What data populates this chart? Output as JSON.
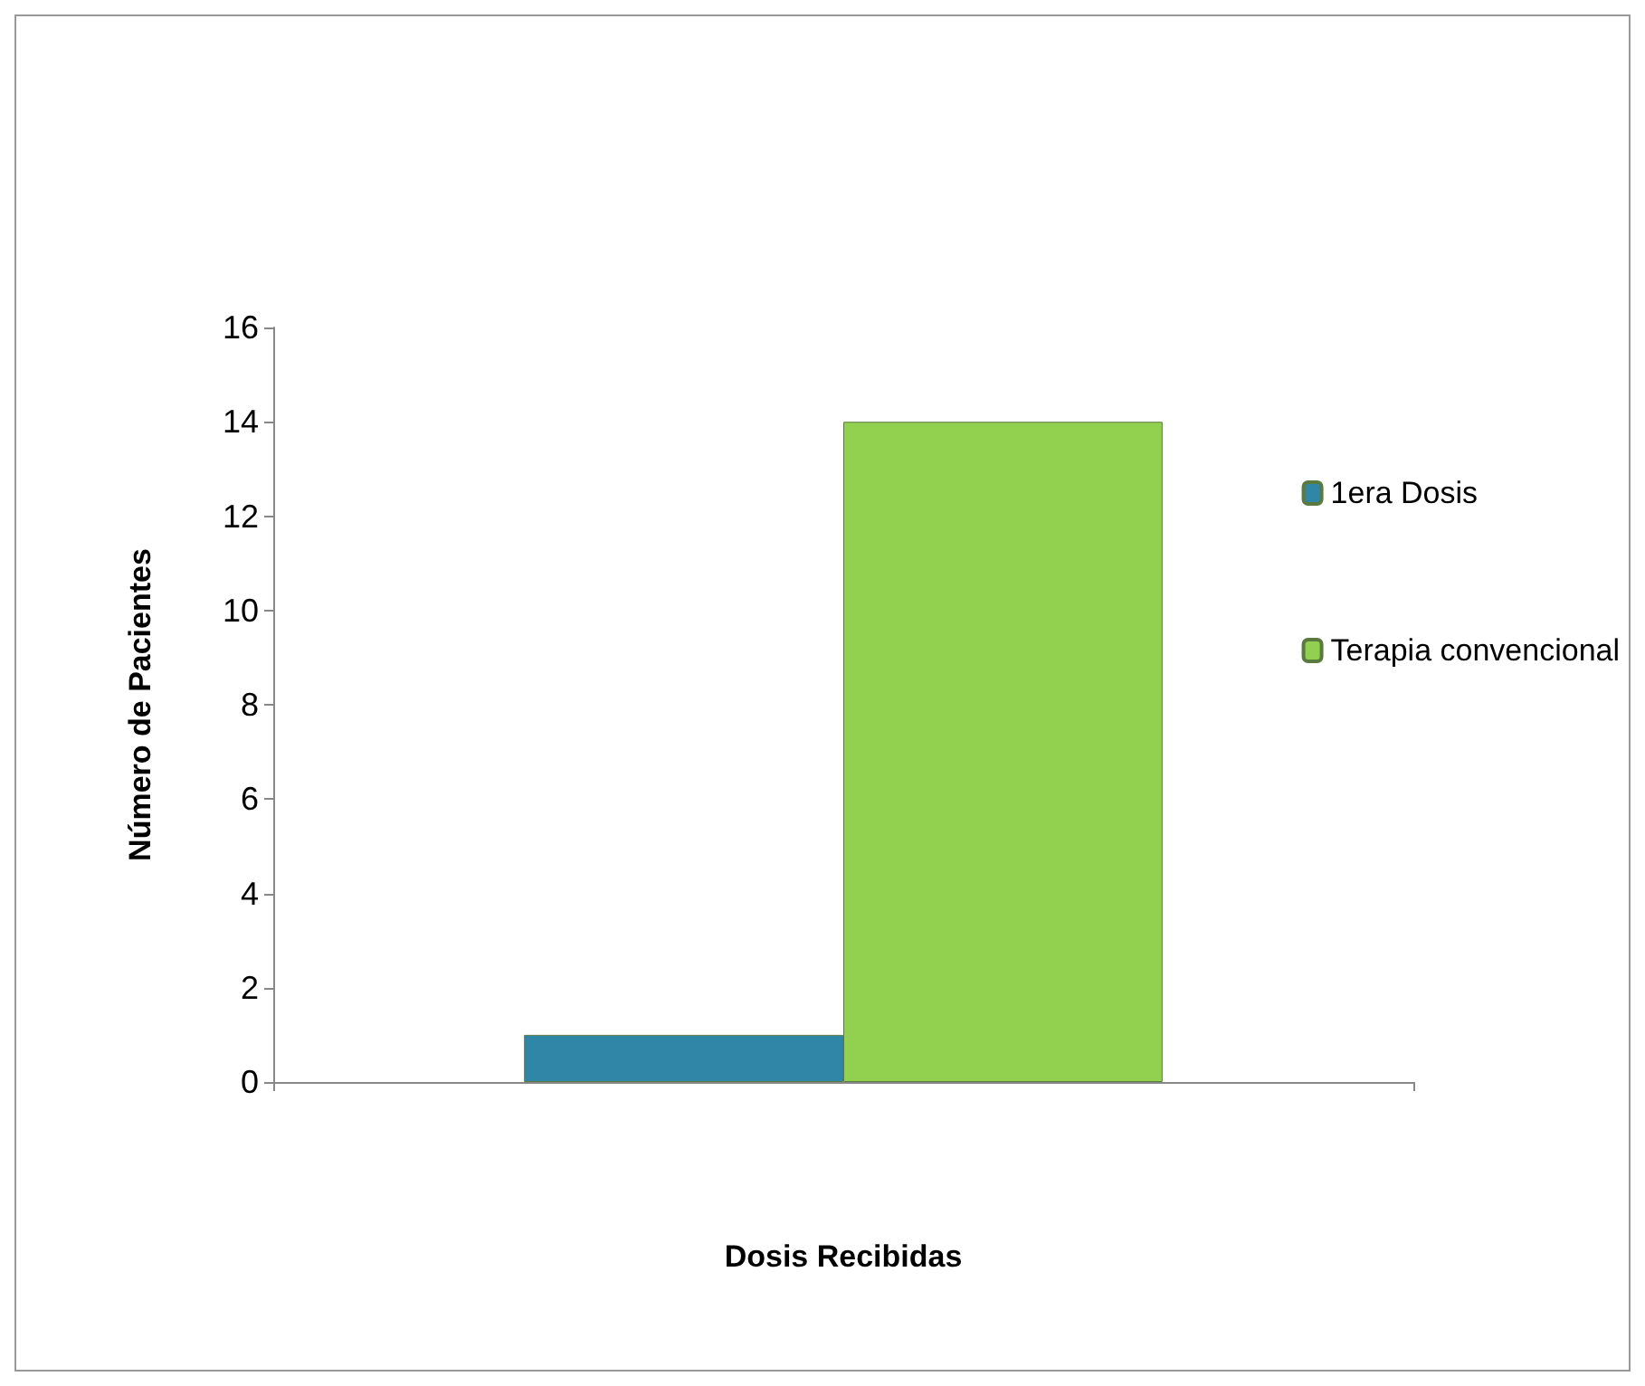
{
  "chart_data": {
    "type": "bar",
    "xlabel": "Dosis Recibidas",
    "ylabel": "Número de Pacientes",
    "categories": [
      null
    ],
    "series": [
      {
        "name": "1era Dosis",
        "color": "#2f86a6",
        "values": [
          1
        ]
      },
      {
        "name": "Terapia convencional",
        "color": "#92d050",
        "values": [
          14
        ]
      }
    ],
    "ylim": [
      0,
      16
    ],
    "yticks": [
      0,
      2,
      4,
      6,
      8,
      10,
      12,
      14,
      16
    ],
    "grid": false,
    "legend": "right"
  }
}
